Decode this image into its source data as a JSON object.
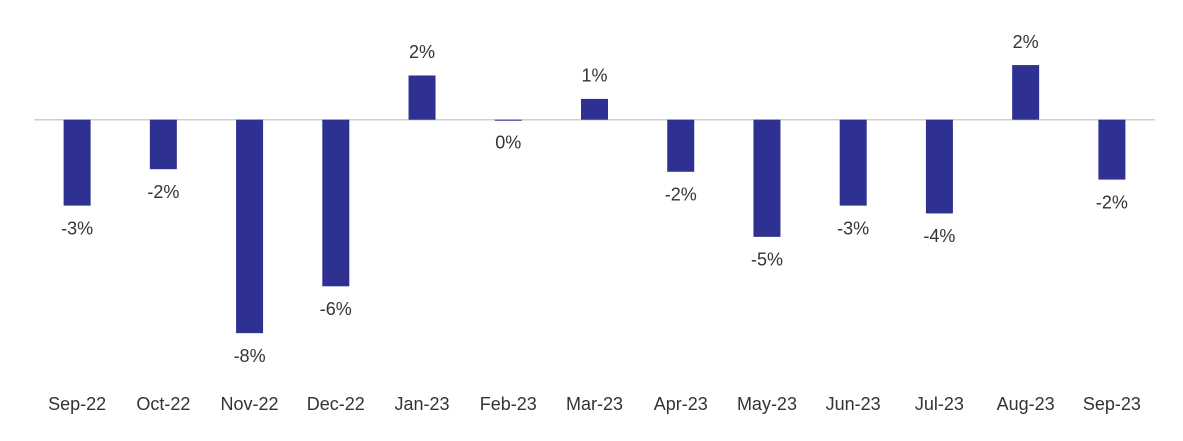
{
  "chart_data": {
    "type": "bar",
    "categories": [
      "Sep-22",
      "Oct-22",
      "Nov-22",
      "Dec-22",
      "Jan-23",
      "Feb-23",
      "Mar-23",
      "Apr-23",
      "May-23",
      "Jun-23",
      "Jul-23",
      "Aug-23",
      "Sep-23"
    ],
    "values": [
      -3.3,
      -1.9,
      -8.2,
      -6.4,
      1.7,
      0,
      0.8,
      -2.0,
      -4.5,
      -3.3,
      -3.6,
      2.1,
      -2.3
    ],
    "value_labels": [
      "-3%",
      "-2%",
      "-8%",
      "-6%",
      "2%",
      "0%",
      "1%",
      "-2%",
      "-5%",
      "-3%",
      "-4%",
      "2%",
      "-2%"
    ],
    "color": "#2e3192",
    "ylim": [
      -10,
      4.6
    ]
  }
}
